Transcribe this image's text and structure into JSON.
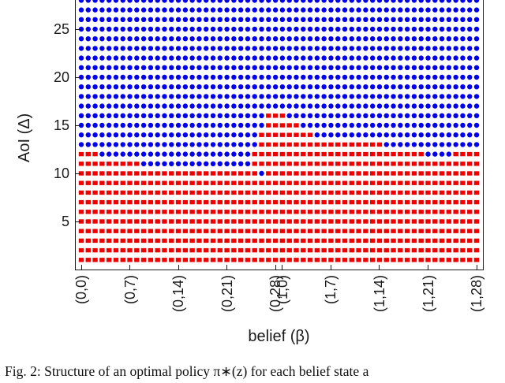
{
  "chart_data": {
    "type": "scatter",
    "title": "",
    "xlabel": "belief (β)",
    "ylabel": "AoI (Δ)",
    "x_tick_labels": [
      "(0,0)",
      "(0,7)",
      "(0,14)",
      "(0,21)",
      "(0,28)",
      "(1,0)",
      "(1,7)",
      "(1,14)",
      "(1,21)",
      "(1,28)"
    ],
    "x_tick_columns": [
      0,
      7,
      14,
      21,
      28,
      29,
      36,
      43,
      50,
      57
    ],
    "y_ticks": [
      5,
      10,
      15,
      20,
      25
    ],
    "ylim": [
      0,
      28
    ],
    "ylim_top_clipped": true,
    "n_columns": 58,
    "delta_min": 1,
    "delta_max": 28,
    "grid": false,
    "legend": "none",
    "series": [
      {
        "name": "red-squares",
        "marker": "square",
        "color": "#ee0000",
        "rule": "shown where delta <= red_max_delta_by_column[column]"
      },
      {
        "name": "blue-circles",
        "marker": "circle",
        "color": "#0000ee",
        "rule": "shown where delta > red_max_delta_by_column[column]"
      }
    ],
    "series_colors": {
      "circle": "#0000ee",
      "square": "#ee0000"
    },
    "red_max_delta_by_column": [
      12,
      12,
      12,
      11,
      11,
      11,
      11,
      11,
      11,
      10,
      10,
      10,
      10,
      10,
      10,
      10,
      10,
      10,
      10,
      10,
      10,
      10,
      10,
      10,
      10,
      12,
      14,
      16,
      16,
      16,
      15,
      15,
      14,
      14,
      13,
      13,
      13,
      13,
      13,
      13,
      13,
      13,
      13,
      13,
      12,
      12,
      12,
      12,
      12,
      12,
      11,
      11,
      11,
      11,
      12,
      12,
      12,
      12
    ],
    "exceptions": [
      {
        "column": 26,
        "delta": 10,
        "marker": "circle"
      }
    ]
  },
  "caption": {
    "text": "Fig. 2: Structure of an optimal policy π∗(z) for each belief state a"
  }
}
